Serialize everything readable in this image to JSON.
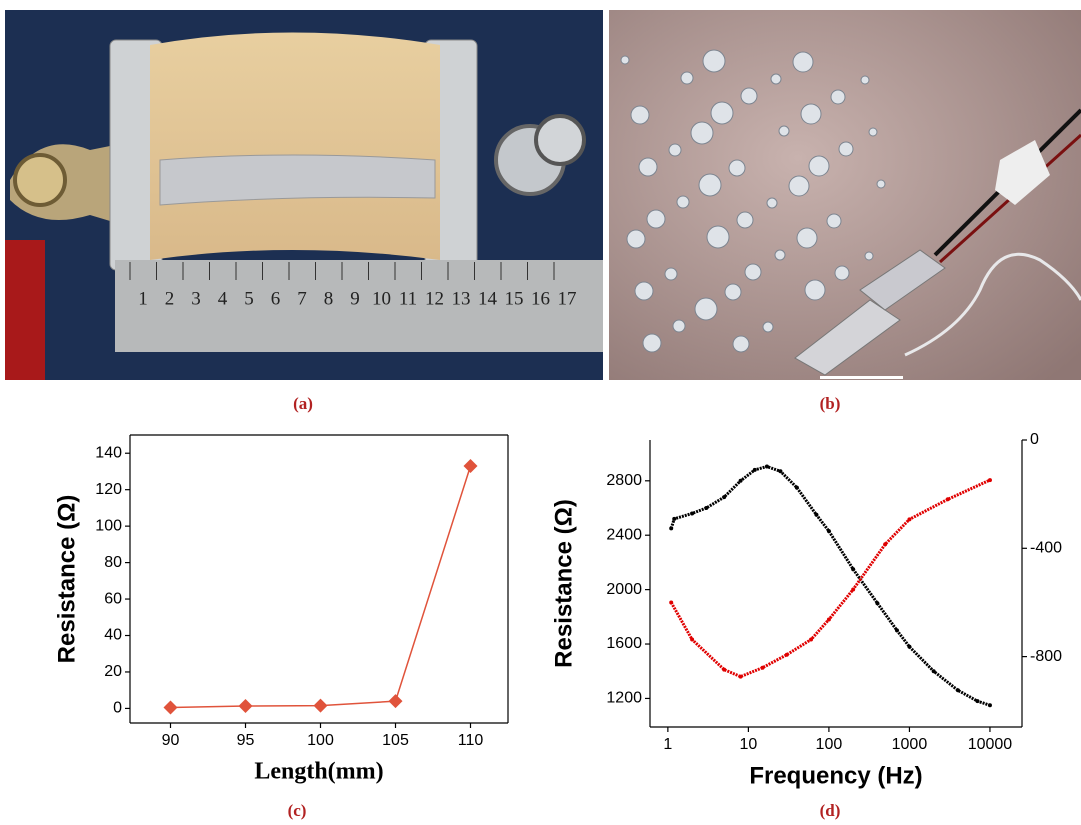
{
  "photos": [
    {
      "label": "(a)",
      "ruler_numbers": [
        "1",
        "2",
        "3",
        "4",
        "5",
        "6",
        "7",
        "8",
        "9",
        "10",
        "11",
        "12",
        "13",
        "14",
        "15",
        "16",
        "17"
      ]
    },
    {
      "label": "(b)"
    }
  ],
  "chart_data": [
    {
      "type": "line",
      "label": "(c)",
      "x_label": "Length(mm)",
      "y_label": "Resistance (Ω)",
      "x": [
        90,
        95,
        100,
        105,
        110
      ],
      "series": [
        {
          "color": "#e0533b",
          "marker": "diamond",
          "values": [
            0.5,
            1.3,
            1.5,
            4,
            133
          ]
        }
      ],
      "xlim": [
        87.3,
        112.5
      ],
      "xticks": [
        90,
        95,
        100,
        105,
        110
      ],
      "ylim": [
        -8,
        150
      ],
      "yticks": [
        0,
        20,
        40,
        60,
        80,
        100,
        120,
        140
      ]
    },
    {
      "type": "scatter",
      "label": "(d)",
      "x_label": "Frequency (Hz)",
      "y_label": "Resistance (Ω)",
      "xlog": true,
      "series": [
        {
          "color": "#000000",
          "x": [
            1.1,
            1.2,
            2,
            3,
            5,
            8,
            12,
            17,
            25,
            40,
            70,
            100,
            200,
            400,
            700,
            1000,
            2000,
            4000,
            7000,
            10000
          ],
          "values": [
            2450,
            2520,
            2560,
            2600,
            2680,
            2800,
            2880,
            2905,
            2870,
            2750,
            2550,
            2430,
            2150,
            1900,
            1700,
            1580,
            1400,
            1260,
            1180,
            1150
          ]
        },
        {
          "color": "#e00000",
          "axis": "y2",
          "x": [
            1.1,
            2,
            5,
            8,
            15,
            30,
            60,
            100,
            200,
            500,
            1000,
            3000,
            10000
          ],
          "values": [
            -600,
            -737,
            -848,
            -874,
            -841,
            -793,
            -737,
            -663,
            -552,
            -385,
            -293,
            -219,
            -148
          ]
        }
      ],
      "xlim": [
        0.6,
        25000
      ],
      "xticks": [
        1,
        10,
        100,
        1000,
        10000
      ],
      "ylim": [
        990,
        3100
      ],
      "yticks": [
        1200,
        1600,
        2000,
        2400,
        2800
      ],
      "y2lim": [
        -1060,
        0
      ],
      "y2ticks": [
        -800,
        -400,
        0
      ]
    }
  ]
}
